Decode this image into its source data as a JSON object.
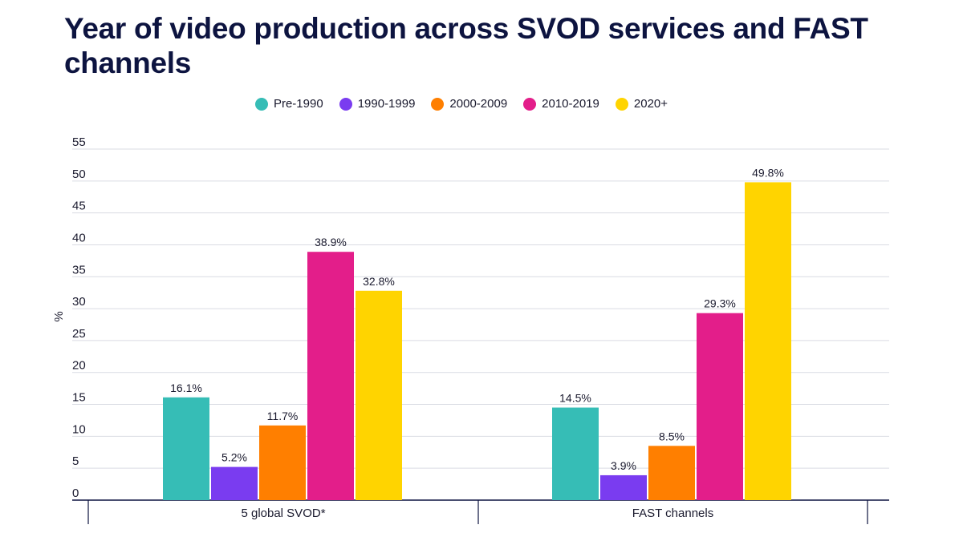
{
  "title": "Year of video production across SVOD services and FAST channels",
  "chart_data": {
    "type": "bar",
    "title": "Year of video production across SVOD services and FAST channels",
    "ylabel": "%",
    "xlabel": "",
    "ylim": [
      0,
      55
    ],
    "yticks": [
      0,
      5,
      10,
      15,
      20,
      25,
      30,
      35,
      40,
      45,
      50,
      55
    ],
    "grid": true,
    "legend_position": "top-center",
    "categories": [
      "5 global SVOD*",
      "FAST channels"
    ],
    "series": [
      {
        "name": "Pre-1990",
        "color": "#36bdb6",
        "values": [
          16.1,
          14.5
        ],
        "labels": [
          "16.1%",
          "14.5%"
        ]
      },
      {
        "name": "1990-1999",
        "color": "#7a3cf0",
        "values": [
          5.2,
          3.9
        ],
        "labels": [
          "5.2%",
          "3.9%"
        ]
      },
      {
        "name": "2000-2009",
        "color": "#ff7f00",
        "values": [
          11.7,
          8.5
        ],
        "labels": [
          "11.7%",
          "8.5%"
        ]
      },
      {
        "name": "2010-2019",
        "color": "#e31e8a",
        "values": [
          38.9,
          29.3
        ],
        "labels": [
          "38.9%",
          "29.3%"
        ]
      },
      {
        "name": "2020+",
        "color": "#ffd400",
        "values": [
          32.8,
          49.8
        ],
        "labels": [
          "32.8%",
          "49.8%"
        ]
      }
    ]
  }
}
